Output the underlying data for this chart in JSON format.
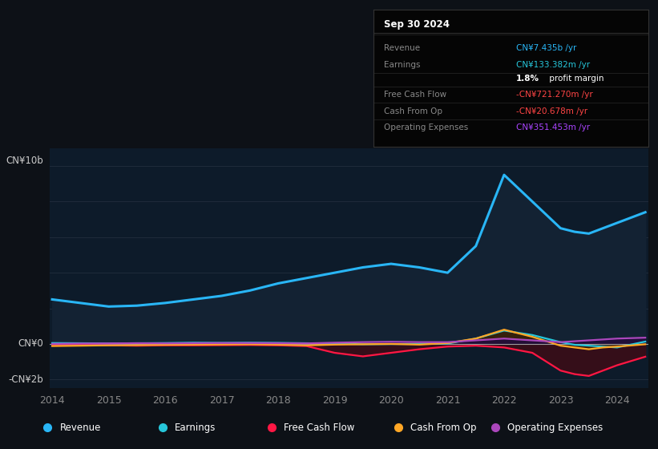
{
  "background_color": "#0d1117",
  "plot_bg_color": "#0d1b2a",
  "title_box_date": "Sep 30 2024",
  "ylabel_top": "CN¥10b",
  "ylabel_zero": "CN¥0",
  "ylabel_bottom": "-CN¥2b",
  "years": [
    2014,
    2014.5,
    2015,
    2015.5,
    2016,
    2016.5,
    2017,
    2017.5,
    2018,
    2018.5,
    2019,
    2019.5,
    2020,
    2020.5,
    2021,
    2021.5,
    2022,
    2022.5,
    2023,
    2023.25,
    2023.5,
    2023.75,
    2024,
    2024.5
  ],
  "revenue": [
    2.5,
    2.3,
    2.1,
    2.15,
    2.3,
    2.5,
    2.7,
    3.0,
    3.4,
    3.7,
    4.0,
    4.3,
    4.5,
    4.3,
    4.0,
    5.5,
    9.5,
    8.0,
    6.5,
    6.3,
    6.2,
    6.5,
    6.8,
    7.4
  ],
  "earnings": [
    0.05,
    0.04,
    0.03,
    0.04,
    0.05,
    0.07,
    0.06,
    0.07,
    0.06,
    0.04,
    0.02,
    -0.02,
    -0.01,
    0.0,
    0.02,
    0.3,
    0.75,
    0.5,
    0.1,
    -0.05,
    -0.1,
    -0.15,
    -0.2,
    0.13
  ],
  "free_cash_flow": [
    -0.05,
    -0.05,
    -0.08,
    -0.1,
    -0.08,
    -0.08,
    -0.07,
    -0.06,
    -0.08,
    -0.12,
    -0.5,
    -0.7,
    -0.5,
    -0.3,
    -0.15,
    -0.1,
    -0.2,
    -0.5,
    -1.5,
    -1.7,
    -1.8,
    -1.5,
    -1.2,
    -0.72
  ],
  "cash_from_op": [
    -0.12,
    -0.1,
    -0.08,
    -0.07,
    -0.05,
    -0.04,
    -0.03,
    -0.02,
    -0.04,
    -0.08,
    -0.04,
    -0.02,
    0.0,
    -0.04,
    0.05,
    0.3,
    0.8,
    0.4,
    -0.1,
    -0.2,
    -0.3,
    -0.2,
    -0.15,
    -0.02
  ],
  "operating_expenses": [
    0.0,
    0.02,
    0.03,
    0.04,
    0.03,
    0.04,
    0.05,
    0.05,
    0.04,
    0.03,
    0.07,
    0.1,
    0.12,
    0.1,
    0.1,
    0.2,
    0.3,
    0.2,
    0.1,
    0.15,
    0.2,
    0.25,
    0.3,
    0.35
  ],
  "revenue_color": "#29b6f6",
  "earnings_color": "#26c6da",
  "free_cash_flow_color": "#ff1744",
  "cash_from_op_color": "#ffa726",
  "operating_expenses_color": "#ab47bc",
  "revenue_fill": "#132233",
  "earnings_fill": "#0d3530",
  "free_cash_flow_fill": "#3a0d18",
  "cash_from_op_fill": "#3a2008",
  "operating_expenses_fill": "#220d3a",
  "x_ticks": [
    2014,
    2015,
    2016,
    2017,
    2018,
    2019,
    2020,
    2021,
    2022,
    2023,
    2024
  ],
  "ylim": [
    -2.5,
    11.0
  ],
  "grid_color": "#1e2a3a",
  "zero_line_color": "#aaaaaa",
  "legend_entries": [
    "Revenue",
    "Earnings",
    "Free Cash Flow",
    "Cash From Op",
    "Operating Expenses"
  ],
  "legend_colors": [
    "#29b6f6",
    "#26c6da",
    "#ff1744",
    "#ffa726",
    "#ab47bc"
  ],
  "info_rows": [
    {
      "label": "Revenue",
      "value": "CN¥7.435b /yr",
      "value_color": "#29b6f6"
    },
    {
      "label": "Earnings",
      "value": "CN¥133.382m /yr",
      "value_color": "#26c6da"
    },
    {
      "label": "",
      "value": "1.8% profit margin",
      "value_color": "#ffffff",
      "is_margin": true
    },
    {
      "label": "Free Cash Flow",
      "value": "-CN¥721.270m /yr",
      "value_color": "#ff4444"
    },
    {
      "label": "Cash From Op",
      "value": "-CN¥20.678m /yr",
      "value_color": "#ff4444"
    },
    {
      "label": "Operating Expenses",
      "value": "CN¥351.453m /yr",
      "value_color": "#aa44ff"
    }
  ]
}
